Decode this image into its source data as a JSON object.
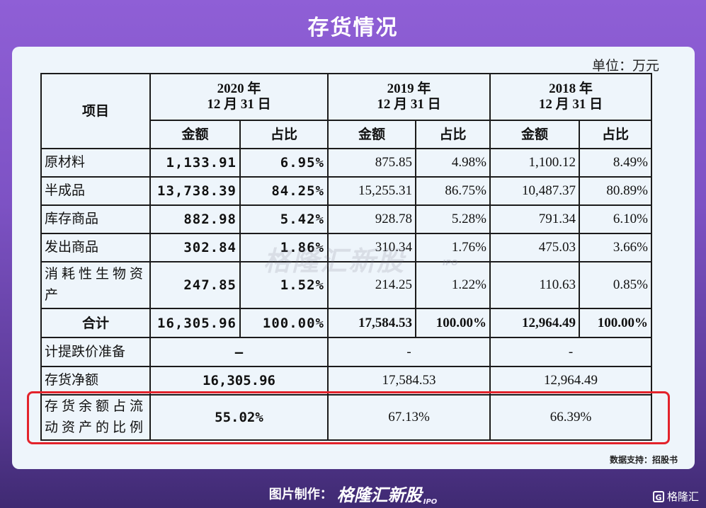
{
  "title": "存货情况",
  "unit": "单位：万元",
  "header": {
    "item": "项目",
    "y2020_line1": "2020 年",
    "y2020_line2": "12 月 31 日",
    "y2019_line1": "2019 年",
    "y2019_line2": "12 月 31 日",
    "y2018_line1": "2018 年",
    "y2018_line2": "12 月 31 日",
    "amount": "金额",
    "ratio": "占比"
  },
  "rows": [
    {
      "label": "原材料",
      "a2020": "1,133.91",
      "r2020": "6.95%",
      "a2019": "875.85",
      "r2019": "4.98%",
      "a2018": "1,100.12",
      "r2018": "8.49%"
    },
    {
      "label": "半成品",
      "a2020": "13,738.39",
      "r2020": "84.25%",
      "a2019": "15,255.31",
      "r2019": "86.75%",
      "a2018": "10,487.37",
      "r2018": "80.89%"
    },
    {
      "label": "库存商品",
      "a2020": "882.98",
      "r2020": "5.42%",
      "a2019": "928.78",
      "r2019": "5.28%",
      "a2018": "791.34",
      "r2018": "6.10%"
    },
    {
      "label": "发出商品",
      "a2020": "302.84",
      "r2020": "1.86%",
      "a2019": "310.34",
      "r2019": "1.76%",
      "a2018": "475.03",
      "r2018": "3.66%"
    },
    {
      "label": "消耗性生物资产",
      "a2020": "247.85",
      "r2020": "1.52%",
      "a2019": "214.25",
      "r2019": "1.22%",
      "a2018": "110.63",
      "r2018": "0.85%"
    }
  ],
  "total": {
    "label": "合计",
    "a2020": "16,305.96",
    "r2020": "100.00%",
    "a2019": "17,584.53",
    "r2019": "100.00%",
    "a2018": "12,964.49",
    "r2018": "100.00%"
  },
  "provision": {
    "label": "计提跌价准备",
    "v2020": "–",
    "v2019": "-",
    "v2018": "-"
  },
  "net": {
    "label": "存货净额",
    "v2020": "16,305.96",
    "v2019": "17,584.53",
    "v2018": "12,964.49"
  },
  "ratio_row": {
    "label": "存货余额占流动资产的比例",
    "v2020": "55.02%",
    "v2019": "67.13%",
    "v2018": "66.39%"
  },
  "watermark": "格隆汇新股",
  "watermark_ipo": "IPO",
  "source": "数据支持：招股书",
  "footer": {
    "made_by": "图片制作：",
    "brand": "格隆汇新股",
    "ipo": "IPO"
  },
  "corner_logo": "格隆汇"
}
